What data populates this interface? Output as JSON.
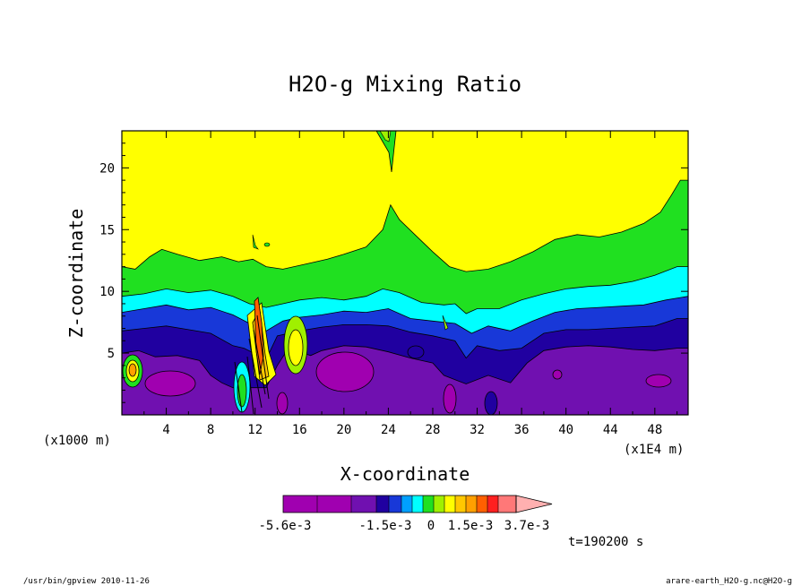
{
  "chart_data": {
    "type": "heatmap",
    "title": "H2O-g Mixing Ratio",
    "xlabel": "X-coordinate",
    "ylabel": "Z-coordinate",
    "x_unit_left": "(x1000 m)",
    "x_unit_right": "(x1E4 m)",
    "x_ticks": [
      4,
      8,
      12,
      16,
      20,
      24,
      28,
      32,
      36,
      40,
      44,
      48
    ],
    "y_ticks": [
      5,
      10,
      15,
      20
    ],
    "xlim": [
      0,
      51
    ],
    "ylim": [
      0,
      23
    ],
    "time_label": "t=190200 s",
    "colorbar": {
      "labels": [
        "-5.6e-3",
        "-1.5e-3",
        "0",
        "1.5e-3",
        "3.7e-3"
      ],
      "colors": [
        "#a000b0",
        "#a000b0",
        "#7010b0",
        "#2000a0",
        "#1838d8",
        "#00a0ff",
        "#00ffff",
        "#20e020",
        "#a0f000",
        "#ffff00",
        "#ffc800",
        "#ffa000",
        "#ff6000",
        "#ff2020",
        "#ff7878",
        "#ffb0b0"
      ]
    },
    "contour_levels": [
      {
        "color": "#ffff00",
        "top": [
          [
            0,
            23
          ],
          [
            51,
            23
          ]
        ]
      },
      {
        "color": "#20e020",
        "top": [
          [
            0,
            12
          ],
          [
            1.2,
            11.8
          ],
          [
            2.5,
            12.8
          ],
          [
            3.6,
            13.4
          ],
          [
            5,
            13
          ],
          [
            7,
            12.5
          ],
          [
            9,
            12.8
          ],
          [
            10.5,
            12.4
          ],
          [
            11.8,
            12.6
          ],
          [
            13,
            12
          ],
          [
            14.5,
            11.8
          ],
          [
            16.5,
            12.2
          ],
          [
            18.5,
            12.6
          ],
          [
            20,
            13
          ],
          [
            22,
            13.6
          ],
          [
            23.5,
            15
          ],
          [
            24.2,
            17
          ],
          [
            25,
            15.8
          ],
          [
            26.5,
            14.5
          ],
          [
            28,
            13.2
          ],
          [
            29.5,
            12
          ],
          [
            31,
            11.6
          ],
          [
            33,
            11.8
          ],
          [
            35,
            12.4
          ],
          [
            37,
            13.2
          ],
          [
            39,
            14.2
          ],
          [
            41,
            14.6
          ],
          [
            43,
            14.4
          ],
          [
            45,
            14.8
          ],
          [
            47,
            15.5
          ],
          [
            48.5,
            16.4
          ],
          [
            49.5,
            17.8
          ],
          [
            50.3,
            19
          ],
          [
            51,
            19
          ]
        ]
      },
      {
        "color": "#00ffff",
        "top": [
          [
            0,
            9.6
          ],
          [
            2,
            9.8
          ],
          [
            4,
            10.2
          ],
          [
            6,
            9.9
          ],
          [
            8,
            10.1
          ],
          [
            10,
            9.6
          ],
          [
            11.5,
            9
          ],
          [
            13,
            8.7
          ],
          [
            14.5,
            9
          ],
          [
            16,
            9.3
          ],
          [
            18,
            9.5
          ],
          [
            20,
            9.3
          ],
          [
            22,
            9.6
          ],
          [
            23.5,
            10.2
          ],
          [
            25,
            9.9
          ],
          [
            27,
            9.1
          ],
          [
            29,
            8.9
          ],
          [
            30,
            9
          ],
          [
            31,
            8.2
          ],
          [
            32,
            8.6
          ],
          [
            34,
            8.6
          ],
          [
            36,
            9.3
          ],
          [
            38,
            9.8
          ],
          [
            40,
            10.2
          ],
          [
            42,
            10.4
          ],
          [
            44,
            10.5
          ],
          [
            46,
            10.8
          ],
          [
            48,
            11.3
          ],
          [
            50,
            12
          ],
          [
            51,
            12
          ]
        ]
      },
      {
        "color": "#1838d8",
        "top": [
          [
            0,
            8.3
          ],
          [
            2,
            8.6
          ],
          [
            4,
            8.9
          ],
          [
            6,
            8.5
          ],
          [
            8,
            8.7
          ],
          [
            10,
            8.1
          ],
          [
            11.5,
            7.4
          ],
          [
            13,
            6.8
          ],
          [
            14.5,
            7.6
          ],
          [
            16,
            7.9
          ],
          [
            18,
            8.1
          ],
          [
            20,
            8.4
          ],
          [
            22,
            8.3
          ],
          [
            24,
            8.6
          ],
          [
            26,
            7.8
          ],
          [
            28,
            7.6
          ],
          [
            30,
            7.4
          ],
          [
            31.5,
            6.6
          ],
          [
            33,
            7.2
          ],
          [
            35,
            6.8
          ],
          [
            37,
            7.6
          ],
          [
            39,
            8.3
          ],
          [
            41,
            8.6
          ],
          [
            43,
            8.7
          ],
          [
            45,
            8.8
          ],
          [
            47,
            8.9
          ],
          [
            49,
            9.3
          ],
          [
            51,
            9.6
          ]
        ]
      },
      {
        "color": "#2000a0",
        "top": [
          [
            0,
            6.8
          ],
          [
            2,
            7
          ],
          [
            4,
            7.2
          ],
          [
            6,
            6.9
          ],
          [
            8,
            6.6
          ],
          [
            10,
            5.6
          ],
          [
            11,
            5.4
          ],
          [
            13,
            4.5
          ],
          [
            14,
            6.4
          ],
          [
            16,
            6.8
          ],
          [
            18,
            7.1
          ],
          [
            20,
            7.3
          ],
          [
            22,
            7.3
          ],
          [
            24,
            7.2
          ],
          [
            26,
            6.7
          ],
          [
            28,
            6.4
          ],
          [
            30,
            6
          ],
          [
            31,
            4.6
          ],
          [
            32,
            5.6
          ],
          [
            34,
            5.2
          ],
          [
            36,
            5.4
          ],
          [
            38,
            6.6
          ],
          [
            40,
            6.9
          ],
          [
            42,
            6.9
          ],
          [
            44,
            7
          ],
          [
            46,
            7.1
          ],
          [
            48,
            7.2
          ],
          [
            50,
            7.8
          ],
          [
            51,
            7.8
          ]
        ]
      },
      {
        "color": "#7010b0",
        "top": [
          [
            0,
            5
          ],
          [
            1.5,
            5.2
          ],
          [
            3,
            4.7
          ],
          [
            5,
            4.8
          ],
          [
            7,
            4.4
          ],
          [
            8,
            3.2
          ],
          [
            9,
            2.6
          ],
          [
            10,
            2.2
          ],
          [
            13,
            2.2
          ],
          [
            14,
            4
          ],
          [
            15,
            5.4
          ],
          [
            17,
            4.8
          ],
          [
            18,
            5.2
          ],
          [
            20,
            5.6
          ],
          [
            22,
            5.5
          ],
          [
            24,
            5.1
          ],
          [
            26,
            4.6
          ],
          [
            28,
            4.2
          ],
          [
            29,
            3.2
          ],
          [
            31,
            2.5
          ],
          [
            33,
            3.2
          ],
          [
            35,
            2.6
          ],
          [
            36.5,
            4.2
          ],
          [
            38,
            5.2
          ],
          [
            40,
            5.5
          ],
          [
            42,
            5.6
          ],
          [
            44,
            5.5
          ],
          [
            46,
            5.3
          ],
          [
            48,
            5.2
          ],
          [
            50,
            5.4
          ],
          [
            51,
            5.4
          ]
        ]
      }
    ]
  },
  "footer": {
    "left": "/usr/bin/gpview   2010-11-26",
    "right": "arare-earth_H2O-g.nc@H2O-g"
  }
}
